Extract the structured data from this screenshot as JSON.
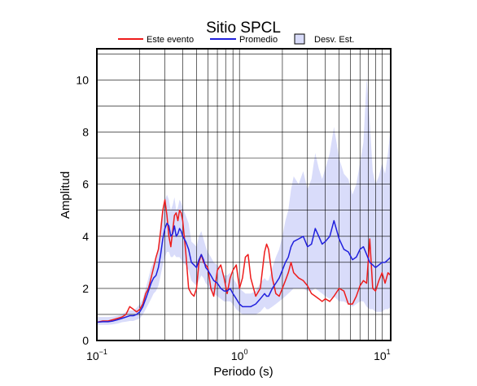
{
  "chart_data": {
    "type": "line",
    "title": "Sitio SPCL",
    "xlabel": "Periodo (s)",
    "ylabel": "Amplitud",
    "x_scale": "log",
    "xlim": [
      0.1,
      11.5
    ],
    "ylim": [
      0,
      11.2
    ],
    "x_ticks": [
      {
        "value": 0.1,
        "base": "10",
        "exp": "−1"
      },
      {
        "value": 1,
        "base": "10",
        "exp": "0"
      },
      {
        "value": 10,
        "base": "10",
        "exp": "1"
      }
    ],
    "y_ticks": [
      0,
      2,
      4,
      6,
      8,
      10
    ],
    "grid": true,
    "legend_position": "top",
    "legend": [
      {
        "label": "Este evento",
        "kind": "line",
        "color": "#ee1c1c"
      },
      {
        "label": "Promedio",
        "kind": "line",
        "color": "#2020dd"
      },
      {
        "label": "Desv. Est.",
        "kind": "area",
        "color": "#d9dcfa"
      }
    ],
    "series": [
      {
        "name": "Este evento",
        "color": "#ee1c1c",
        "x": [
          0.1,
          0.11,
          0.12,
          0.13,
          0.14,
          0.15,
          0.16,
          0.17,
          0.18,
          0.19,
          0.2,
          0.21,
          0.22,
          0.23,
          0.24,
          0.25,
          0.26,
          0.27,
          0.28,
          0.29,
          0.3,
          0.31,
          0.32,
          0.33,
          0.34,
          0.35,
          0.36,
          0.37,
          0.38,
          0.39,
          0.4,
          0.42,
          0.44,
          0.46,
          0.48,
          0.5,
          0.52,
          0.54,
          0.56,
          0.58,
          0.6,
          0.63,
          0.66,
          0.7,
          0.74,
          0.78,
          0.82,
          0.86,
          0.9,
          0.95,
          1.0,
          1.05,
          1.1,
          1.15,
          1.2,
          1.3,
          1.4,
          1.5,
          1.55,
          1.6,
          1.7,
          1.8,
          1.9,
          2.0,
          2.1,
          2.2,
          2.3,
          2.4,
          2.6,
          2.8,
          3.0,
          3.2,
          3.4,
          3.6,
          3.8,
          4.0,
          4.3,
          4.6,
          5.0,
          5.4,
          5.8,
          6.2,
          6.6,
          7.0,
          7.4,
          7.8,
          8.2,
          8.6,
          9.0,
          9.5,
          10.0,
          10.5,
          11.0,
          11.5
        ],
        "values": [
          0.7,
          0.75,
          0.75,
          0.8,
          0.85,
          0.9,
          1.0,
          1.3,
          1.2,
          1.1,
          1.2,
          1.4,
          1.8,
          2.0,
          2.4,
          2.8,
          3.2,
          3.5,
          4.2,
          5.0,
          5.4,
          4.8,
          4.0,
          3.6,
          4.2,
          4.8,
          4.9,
          4.6,
          5.0,
          4.9,
          4.6,
          3.4,
          2.0,
          1.8,
          1.7,
          2.0,
          3.0,
          3.3,
          3.0,
          2.9,
          2.8,
          2.0,
          1.7,
          2.7,
          2.9,
          2.4,
          1.8,
          2.4,
          2.7,
          2.9,
          2.0,
          2.4,
          3.2,
          3.3,
          2.4,
          1.7,
          2.0,
          3.4,
          3.7,
          3.5,
          2.4,
          1.8,
          1.7,
          2.0,
          2.3,
          2.6,
          3.0,
          2.6,
          2.4,
          2.3,
          2.1,
          1.8,
          1.7,
          1.6,
          1.5,
          1.6,
          1.5,
          1.7,
          2.0,
          1.9,
          1.4,
          1.4,
          1.7,
          2.1,
          2.3,
          2.2,
          3.9,
          2.0,
          1.9,
          2.3,
          2.6,
          2.2,
          2.6,
          2.5
        ]
      },
      {
        "name": "Promedio",
        "color": "#2020dd",
        "x": [
          0.1,
          0.11,
          0.12,
          0.13,
          0.14,
          0.15,
          0.16,
          0.17,
          0.18,
          0.19,
          0.2,
          0.21,
          0.22,
          0.23,
          0.24,
          0.25,
          0.26,
          0.27,
          0.28,
          0.29,
          0.3,
          0.31,
          0.32,
          0.33,
          0.34,
          0.35,
          0.36,
          0.37,
          0.38,
          0.39,
          0.4,
          0.42,
          0.44,
          0.46,
          0.48,
          0.5,
          0.52,
          0.54,
          0.56,
          0.58,
          0.6,
          0.63,
          0.66,
          0.7,
          0.74,
          0.78,
          0.82,
          0.86,
          0.9,
          0.95,
          1.0,
          1.05,
          1.1,
          1.15,
          1.2,
          1.3,
          1.4,
          1.5,
          1.55,
          1.6,
          1.7,
          1.8,
          1.9,
          2.0,
          2.1,
          2.2,
          2.3,
          2.4,
          2.6,
          2.8,
          3.0,
          3.2,
          3.4,
          3.6,
          3.8,
          4.0,
          4.3,
          4.6,
          5.0,
          5.4,
          5.8,
          6.2,
          6.6,
          7.0,
          7.4,
          7.8,
          8.2,
          8.6,
          9.0,
          9.5,
          10.0,
          10.5,
          11.0,
          11.5
        ],
        "values": [
          0.7,
          0.72,
          0.72,
          0.75,
          0.8,
          0.85,
          0.9,
          0.95,
          0.95,
          1.0,
          1.1,
          1.3,
          1.6,
          1.9,
          2.2,
          2.4,
          2.5,
          2.8,
          3.3,
          3.9,
          4.3,
          4.5,
          4.4,
          4.0,
          4.1,
          4.4,
          4.0,
          4.1,
          4.3,
          4.2,
          4.0,
          3.8,
          3.5,
          3.0,
          2.9,
          2.8,
          3.1,
          3.3,
          3.1,
          2.8,
          2.7,
          2.5,
          2.3,
          2.2,
          2.0,
          1.9,
          1.9,
          2.0,
          1.8,
          1.6,
          1.4,
          1.3,
          1.3,
          1.3,
          1.3,
          1.4,
          1.6,
          1.8,
          1.7,
          1.7,
          2.0,
          2.2,
          2.4,
          2.7,
          3.0,
          3.2,
          3.6,
          3.8,
          3.9,
          4.0,
          3.6,
          3.7,
          4.3,
          4.0,
          3.7,
          3.8,
          4.0,
          4.6,
          3.9,
          3.5,
          3.4,
          3.1,
          3.2,
          3.5,
          3.6,
          3.3,
          3.0,
          2.9,
          2.8,
          2.9,
          3.0,
          3.0,
          3.1,
          3.2
        ]
      }
    ],
    "band": {
      "name": "Desv. Est.",
      "color": "#d9dcfa",
      "x": [
        0.1,
        0.11,
        0.12,
        0.13,
        0.14,
        0.15,
        0.16,
        0.17,
        0.18,
        0.19,
        0.2,
        0.21,
        0.22,
        0.23,
        0.24,
        0.25,
        0.26,
        0.27,
        0.28,
        0.29,
        0.3,
        0.31,
        0.32,
        0.33,
        0.34,
        0.35,
        0.36,
        0.37,
        0.38,
        0.39,
        0.4,
        0.42,
        0.44,
        0.46,
        0.48,
        0.5,
        0.52,
        0.54,
        0.56,
        0.58,
        0.6,
        0.63,
        0.66,
        0.7,
        0.74,
        0.78,
        0.82,
        0.86,
        0.9,
        0.95,
        1.0,
        1.05,
        1.1,
        1.15,
        1.2,
        1.3,
        1.4,
        1.5,
        1.55,
        1.6,
        1.7,
        1.8,
        1.9,
        2.0,
        2.1,
        2.2,
        2.3,
        2.4,
        2.6,
        2.8,
        3.0,
        3.2,
        3.4,
        3.6,
        3.8,
        4.0,
        4.3,
        4.6,
        5.0,
        5.4,
        5.8,
        6.2,
        6.6,
        7.0,
        7.4,
        7.8,
        8.2,
        8.6,
        9.0,
        9.5,
        10.0,
        10.5,
        11.0,
        11.5
      ],
      "lower": [
        0.6,
        0.6,
        0.6,
        0.62,
        0.65,
        0.7,
        0.72,
        0.75,
        0.75,
        0.8,
        0.85,
        1.0,
        1.2,
        1.4,
        1.6,
        1.8,
        1.9,
        2.1,
        2.5,
        2.9,
        3.2,
        3.4,
        3.4,
        3.2,
        3.2,
        3.3,
        3.2,
        3.2,
        3.2,
        3.1,
        3.0,
        2.9,
        2.7,
        2.3,
        2.2,
        2.1,
        2.3,
        2.5,
        2.4,
        2.2,
        2.1,
        1.9,
        1.8,
        1.7,
        1.6,
        1.5,
        1.5,
        1.5,
        1.4,
        1.2,
        1.1,
        1.0,
        1.0,
        1.0,
        1.0,
        1.0,
        1.1,
        1.3,
        1.2,
        1.2,
        1.3,
        1.4,
        1.5,
        1.6,
        1.7,
        1.8,
        1.9,
        2.0,
        2.0,
        2.0,
        1.9,
        1.9,
        2.0,
        1.9,
        1.8,
        1.7,
        1.6,
        1.7,
        1.5,
        1.5,
        1.4,
        1.3,
        1.4,
        1.5,
        1.5,
        1.3,
        1.2,
        1.2,
        1.1,
        1.1,
        1.1,
        1.2,
        1.2,
        1.3
      ],
      "upper": [
        0.9,
        0.9,
        0.9,
        0.92,
        0.95,
        1.0,
        1.1,
        1.15,
        1.15,
        1.25,
        1.4,
        1.6,
        2.0,
        2.4,
        2.8,
        3.0,
        3.1,
        3.5,
        4.1,
        4.9,
        5.4,
        5.6,
        5.4,
        5.0,
        5.2,
        5.5,
        5.0,
        5.1,
        5.4,
        5.3,
        5.1,
        4.8,
        4.5,
        3.8,
        3.7,
        3.6,
        4.0,
        4.2,
        3.9,
        3.6,
        3.4,
        3.2,
        3.0,
        2.9,
        2.7,
        2.5,
        2.5,
        2.6,
        2.4,
        2.2,
        2.0,
        1.9,
        1.8,
        1.8,
        1.8,
        1.9,
        2.2,
        2.4,
        2.3,
        2.3,
        2.8,
        3.2,
        3.5,
        4.0,
        4.6,
        5.0,
        5.8,
        6.3,
        6.0,
        6.5,
        5.8,
        6.2,
        7.2,
        6.6,
        6.2,
        6.6,
        7.2,
        8.2,
        7.0,
        6.4,
        6.2,
        5.6,
        6.0,
        6.8,
        7.6,
        10.1,
        8.4,
        6.5,
        6.0,
        6.3,
        6.8,
        6.4,
        7.2,
        8.2
      ]
    }
  }
}
